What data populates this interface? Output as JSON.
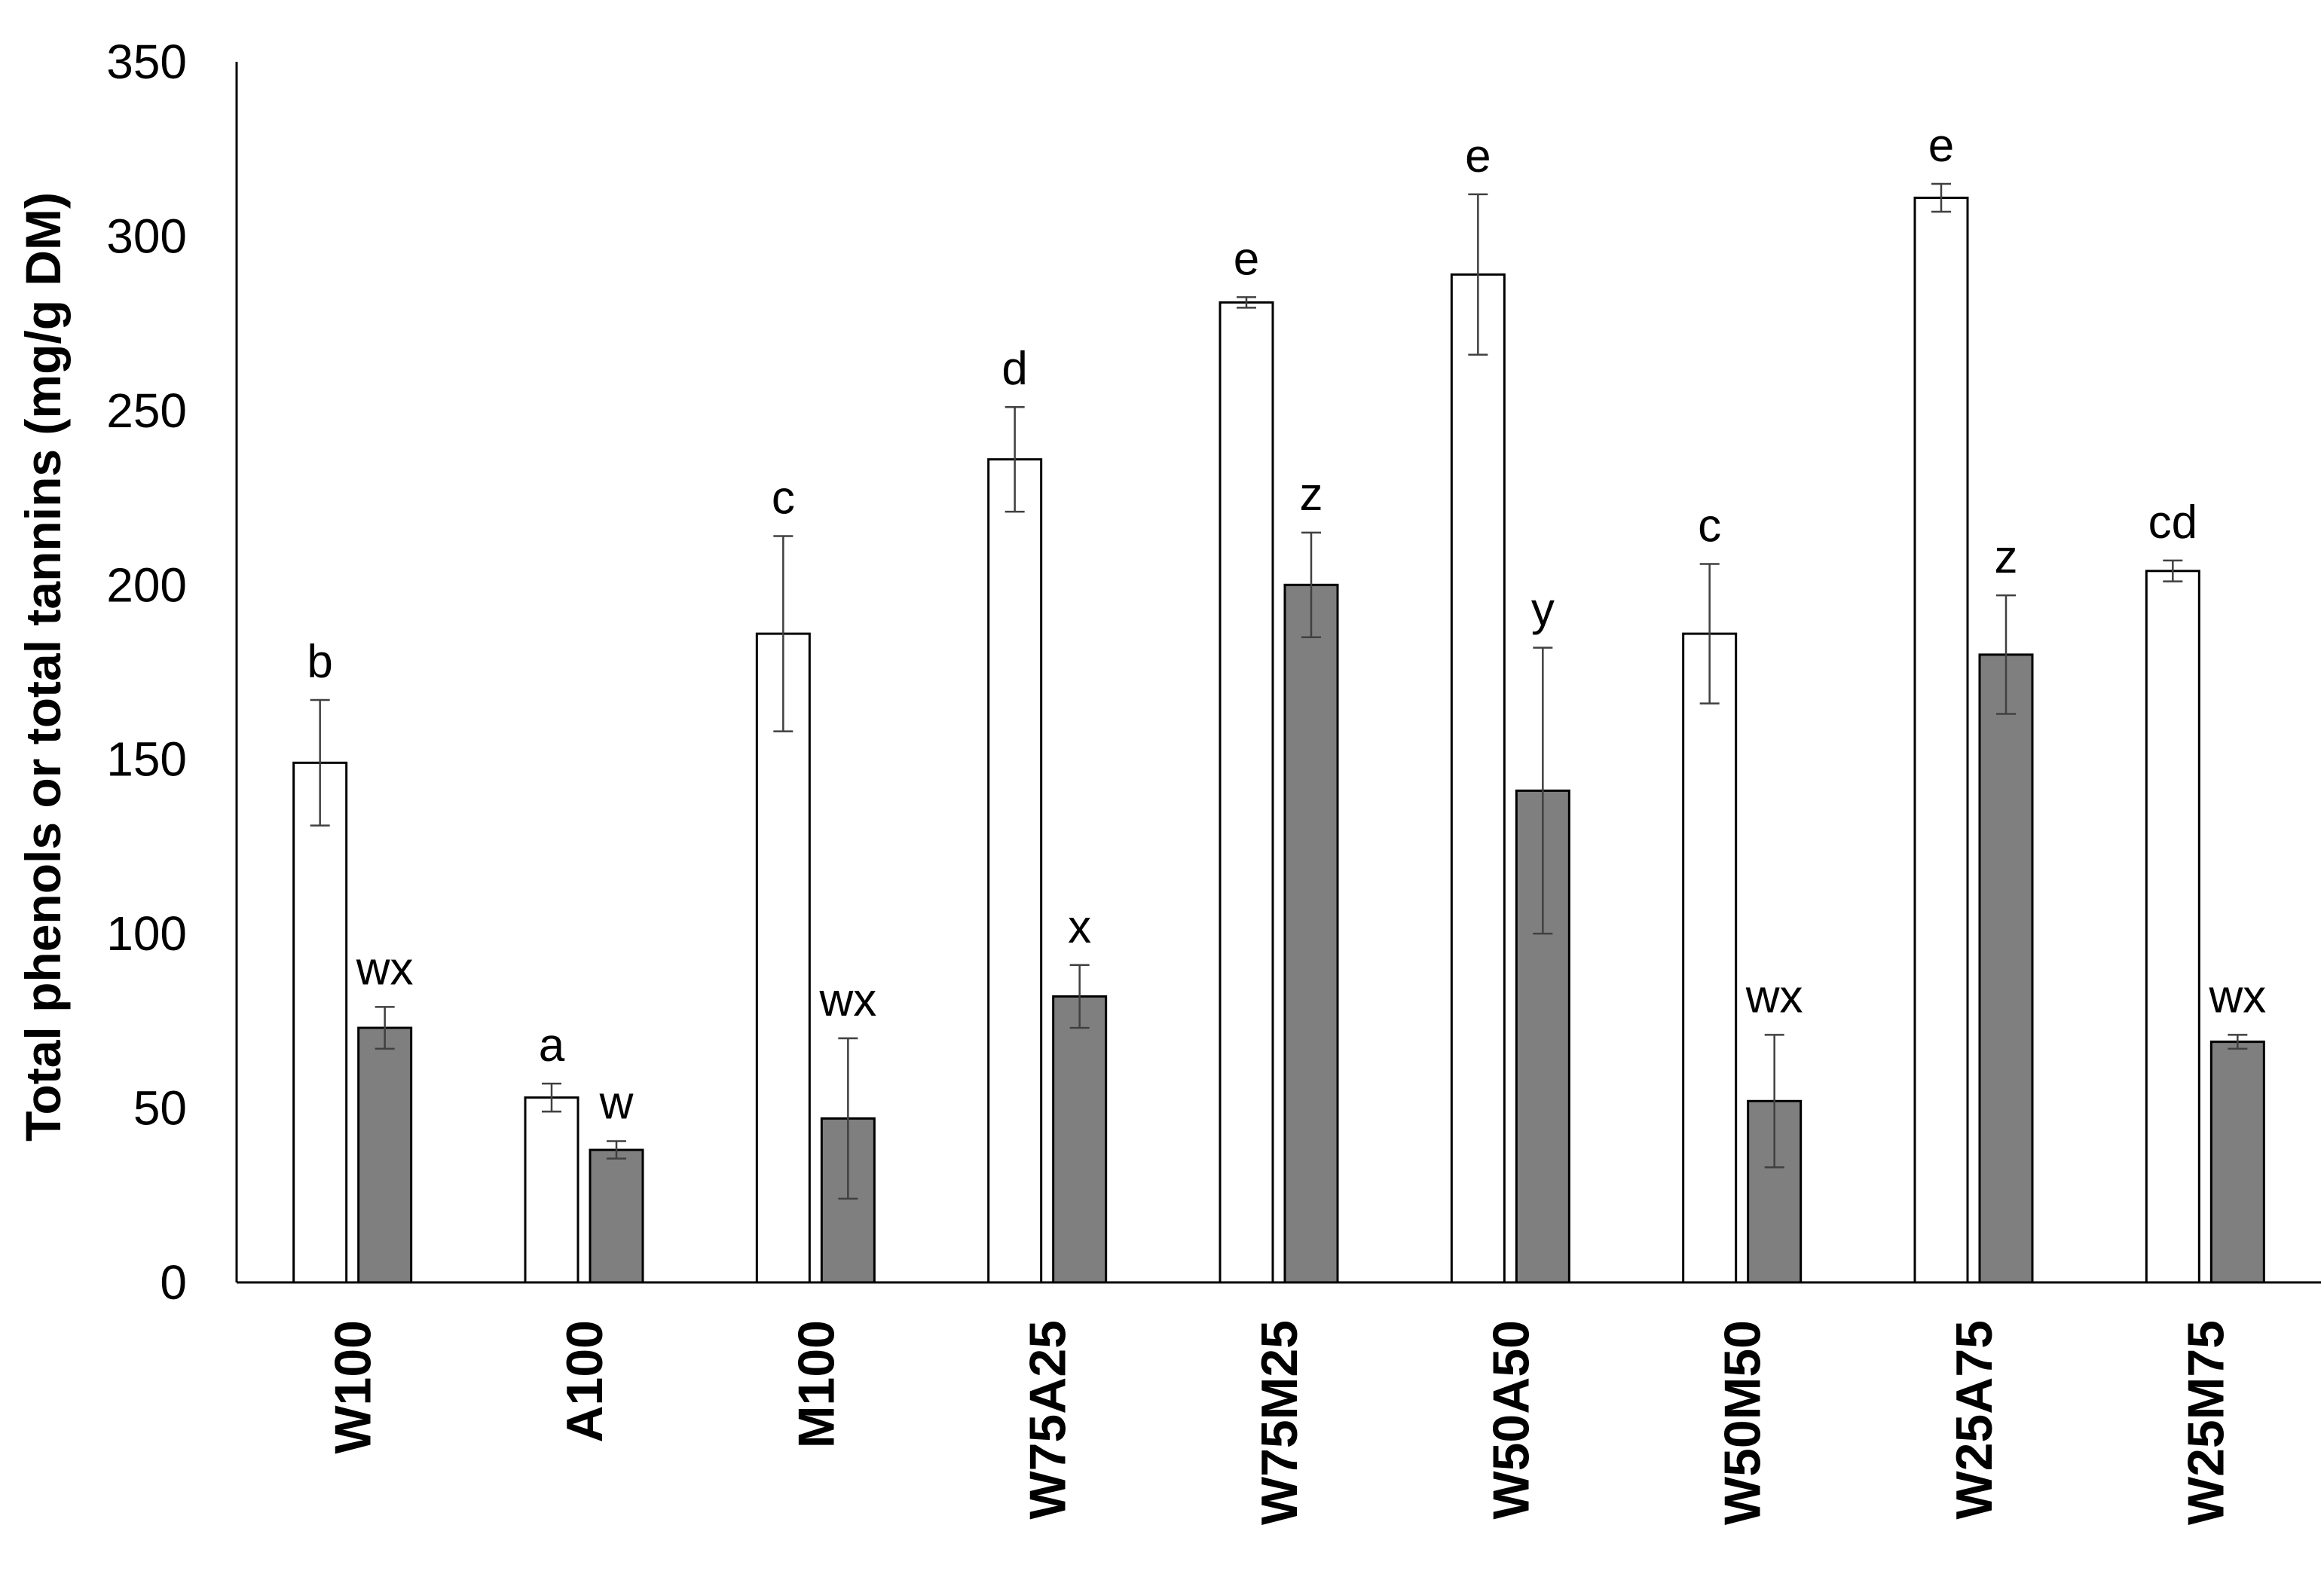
{
  "chart_data": {
    "type": "bar",
    "title": "",
    "ylabel": "Total phenols or total tannins (mg/g DM)",
    "xlabel": "",
    "ylim": [
      0,
      350
    ],
    "yticks": [
      0,
      50,
      100,
      150,
      200,
      250,
      300,
      350
    ],
    "grid": false,
    "categories": [
      "W100",
      "A100",
      "M100",
      "W75A25",
      "W75M25",
      "W50A50",
      "W50M50",
      "W25A75",
      "W25M75"
    ],
    "series": [
      {
        "color": "#ffffff",
        "values": [
          149,
          53,
          186,
          236,
          281,
          289,
          186,
          311,
          204
        ],
        "errors": [
          18,
          4,
          28,
          15,
          1.5,
          23,
          20,
          4,
          3
        ],
        "labels": [
          "b",
          "a",
          "c",
          "d",
          "e",
          "e",
          "c",
          "e",
          "cd"
        ]
      },
      {
        "color": "#7f7f7f",
        "values": [
          73,
          38,
          47,
          82,
          200,
          141,
          52,
          180,
          69
        ],
        "errors": [
          6,
          2.5,
          23,
          9,
          15,
          41,
          19,
          17,
          2
        ],
        "labels": [
          "wx",
          "w",
          "wx",
          "x",
          "z",
          "y",
          "wx",
          "z",
          "wx"
        ]
      }
    ]
  }
}
